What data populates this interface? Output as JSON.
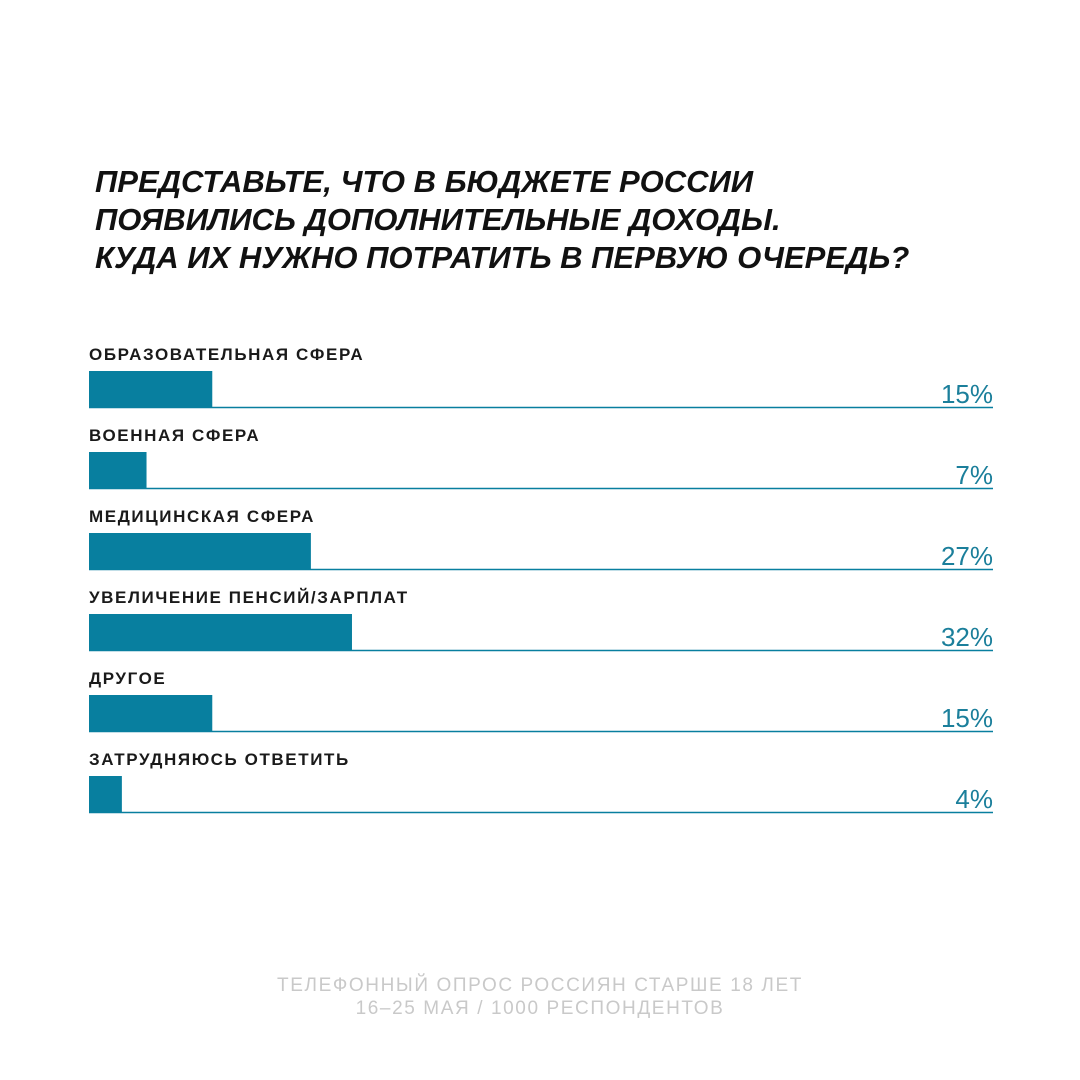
{
  "chart_data": {
    "type": "bar",
    "orientation": "horizontal",
    "title": [
      "ПРЕДСТАВЬТЕ, ЧТО В БЮДЖЕТЕ РОССИИ",
      "ПОЯВИЛИСЬ ДОПОЛНИТЕЛЬНЫЕ ДОХОДЫ.",
      "КУДА ИХ НУЖНО ПОТРАТИТЬ В ПЕРВУЮ ОЧЕРЕДЬ?"
    ],
    "categories": [
      "ОБРАЗОВАТЕЛЬНАЯ СФЕРА",
      "ВОЕННАЯ СФЕРА",
      "МЕДИЦИНСКАЯ СФЕРА",
      "УВЕЛИЧЕНИЕ ПЕНСИЙ/ЗАРПЛАТ",
      "ДРУГОЕ",
      "ЗАТРУДНЯЮСЬ  ОТВЕТИТЬ"
    ],
    "values": [
      15,
      7,
      27,
      32,
      15,
      4
    ],
    "value_labels": [
      "15%",
      "7%",
      "27%",
      "32%",
      "15%",
      "4%"
    ],
    "color": "#087f9f",
    "xlim": [
      0,
      110
    ],
    "note": [
      "ТЕЛЕФОННЫЙ ОПРОС РОССИЯН СТАРШЕ 18 ЛЕТ",
      "16–25 МАЯ / 1000  РЕСПОНДЕНТОВ"
    ]
  }
}
